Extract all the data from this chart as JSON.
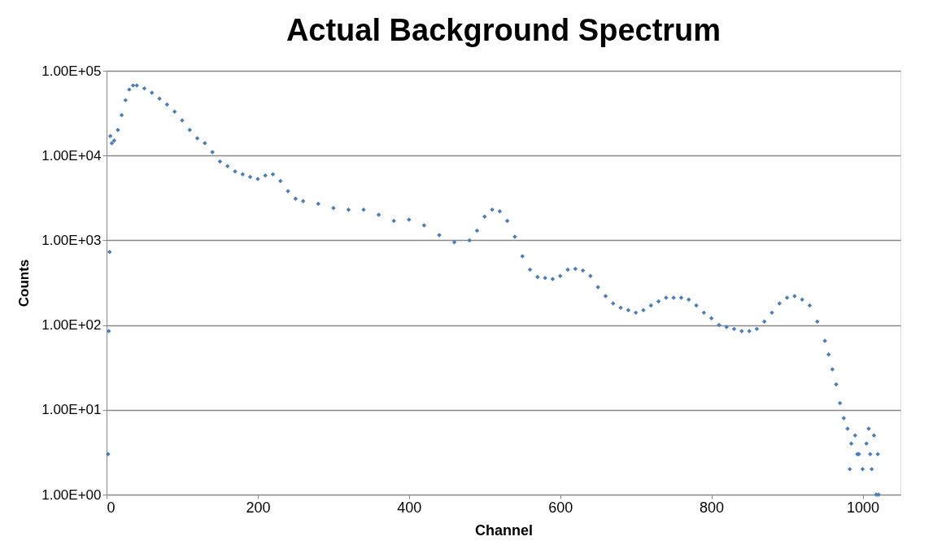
{
  "chart_data": {
    "type": "scatter",
    "title": "Actual Background Spectrum",
    "xlabel": "Channel",
    "ylabel": "Counts",
    "log": "y",
    "grid": "y",
    "marker": "diamond",
    "xlim": [
      0,
      1050
    ],
    "xticks": [
      0,
      200,
      400,
      600,
      800,
      1000
    ],
    "ylim": [
      1,
      100000
    ],
    "yticks": [
      {
        "value": 1,
        "label": "1.00E+00"
      },
      {
        "value": 10,
        "label": "1.00E+01"
      },
      {
        "value": 100,
        "label": "1.00E+02"
      },
      {
        "value": 1000,
        "label": "1.00E+03"
      },
      {
        "value": 10000,
        "label": "1.00E+04"
      },
      {
        "value": 100000,
        "label": "1.00E+05"
      }
    ],
    "series": [
      {
        "color": "#4a7ebb",
        "x": [
          2,
          3,
          4,
          5,
          7,
          10,
          15,
          20,
          25,
          30,
          35,
          40,
          50,
          60,
          70,
          80,
          90,
          100,
          110,
          120,
          130,
          140,
          150,
          160,
          170,
          180,
          190,
          200,
          210,
          220,
          230,
          240,
          250,
          260,
          280,
          300,
          320,
          340,
          360,
          380,
          400,
          420,
          440,
          460,
          480,
          490,
          500,
          510,
          520,
          530,
          540,
          550,
          560,
          570,
          580,
          590,
          600,
          610,
          620,
          630,
          640,
          650,
          660,
          670,
          680,
          690,
          700,
          710,
          720,
          730,
          740,
          750,
          760,
          770,
          780,
          790,
          800,
          810,
          820,
          830,
          840,
          850,
          860,
          870,
          880,
          890,
          900,
          910,
          920,
          930,
          940,
          950,
          955,
          960,
          965,
          970,
          975,
          980,
          983,
          985,
          990,
          993,
          995,
          1000,
          1005,
          1008,
          1010,
          1012,
          1015,
          1018,
          1020,
          1021
        ],
        "values": [
          3,
          85,
          730,
          17000,
          14000,
          15000,
          20000,
          30000,
          45000,
          60000,
          67000,
          67000,
          62000,
          55000,
          47000,
          40000,
          33000,
          26000,
          20000,
          16000,
          14000,
          11000,
          8500,
          7500,
          6500,
          6000,
          5600,
          5300,
          5800,
          6000,
          5000,
          3800,
          3100,
          2900,
          2700,
          2400,
          2300,
          2300,
          2000,
          1700,
          1750,
          1500,
          1150,
          950,
          1000,
          1300,
          1900,
          2300,
          2200,
          1700,
          1100,
          650,
          450,
          370,
          360,
          350,
          380,
          450,
          460,
          440,
          380,
          280,
          220,
          180,
          160,
          150,
          140,
          150,
          170,
          190,
          210,
          210,
          210,
          200,
          170,
          140,
          120,
          100,
          95,
          90,
          85,
          85,
          90,
          110,
          140,
          180,
          210,
          220,
          200,
          170,
          110,
          65,
          45,
          30,
          20,
          12,
          8,
          6,
          2,
          4,
          5,
          3,
          3,
          2,
          4,
          6,
          3,
          2,
          5,
          1,
          3,
          1
        ]
      }
    ]
  }
}
